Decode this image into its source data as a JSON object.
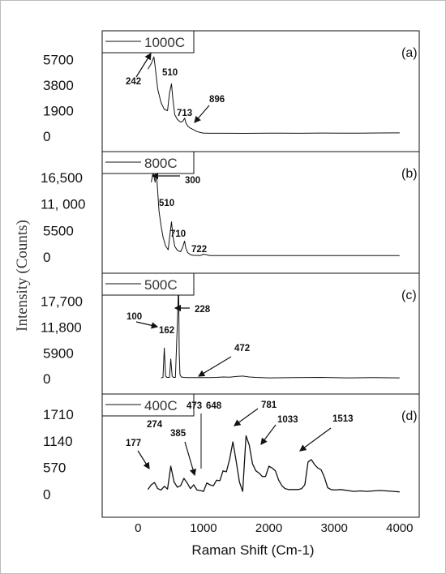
{
  "chart_data": {
    "type": "line",
    "xlabel": "Raman Shift (Cm-1)",
    "ylabel": "Intensity (Counts)",
    "x_ticks": [
      "0",
      "1000",
      "2000",
      "3000",
      "4000"
    ],
    "xlim": [
      -550,
      4300
    ],
    "panels": [
      {
        "panel_label": "(a)",
        "legend": "1000C",
        "y_ticks": [
          "5700",
          "3800",
          "1900",
          "0"
        ],
        "y_tick_values": [
          5700,
          3800,
          1900,
          0
        ],
        "ylim": [
          -300,
          7000
        ],
        "series": [
          {
            "x": [
              150,
              200,
              242,
              260,
              300,
              350,
              400,
              450,
              480,
              510,
              530,
              560,
              600,
              650,
              680,
              713,
              730,
              760,
              800,
              850,
              896,
              950,
              1000,
              1100,
              1200,
              1400,
              1600,
              1800,
              2000,
              2200,
              2500,
              2800,
              3100,
              3400,
              3700,
              4000
            ],
            "y": [
              5000,
              5400,
              5900,
              5200,
              3500,
              2500,
              2000,
              1900,
              3200,
              3900,
              2800,
              1600,
              1250,
              1050,
              1100,
              1350,
              1000,
              750,
              600,
              480,
              350,
              280,
              230,
              220,
              220,
              220,
              215,
              220,
              225,
              230,
              220,
              235,
              225,
              230,
              240,
              250
            ]
          }
        ],
        "annotations": [
          "242",
          "510",
          "713",
          "896"
        ]
      },
      {
        "panel_label": "(b)",
        "legend": "800C",
        "y_ticks": [
          "16,500",
          "11, 000",
          "5500",
          "0"
        ],
        "y_tick_values": [
          16500,
          11000,
          5500,
          0
        ],
        "ylim": [
          -1000,
          19500
        ],
        "series": [
          {
            "x": [
              200,
              230,
              260,
              280,
              300,
              320,
              350,
              380,
              420,
              460,
              490,
              510,
              530,
              560,
              600,
              650,
              680,
              710,
              730,
              760,
              800,
              850,
              900,
              950,
              1000,
              1100,
              1200,
              1400,
              1700,
              2000,
              2500,
              3000,
              3500,
              4000
            ],
            "y": [
              15500,
              17500,
              15500,
              17500,
              13500,
              9500,
              6500,
              4200,
              2300,
              1500,
              5000,
              7300,
              4500,
              2200,
              1400,
              1100,
              2000,
              3300,
              1800,
              900,
              500,
              350,
              350,
              300,
              600,
              300,
              300,
              300,
              300,
              300,
              300,
              300,
              300,
              300
            ]
          }
        ],
        "annotations": [
          "300",
          "510",
          "710",
          "722"
        ]
      },
      {
        "panel_label": "(c)",
        "legend": "500C",
        "y_ticks": [
          "17,700",
          "11,800",
          "5900",
          "0"
        ],
        "y_tick_values": [
          17700,
          11800,
          5900,
          0
        ],
        "ylim": [
          -900,
          21500
        ],
        "series": [
          {
            "x": [
              350,
              380,
              400,
              420,
              440,
              480,
              500,
              520,
              540,
              570,
              600,
              620,
              628,
              640,
              660,
              700,
              750,
              800,
              900,
              1000,
              1100,
              1200,
              1300,
              1400,
              1500,
              1600,
              1700,
              1800,
              2000,
              2400,
              2800,
              3200,
              3600,
              4000
            ],
            "y": [
              200,
              300,
              7000,
              600,
              300,
              300,
              4500,
              600,
              300,
              300,
              12500,
              22000,
              6000,
              1000,
              400,
              300,
              250,
              250,
              250,
              250,
              250,
              300,
              400,
              350,
              500,
              600,
              400,
              300,
              200,
              250,
              300,
              200,
              250,
              200
            ]
          }
        ],
        "annotations": [
          "100",
          "162",
          "228",
          "472"
        ]
      },
      {
        "panel_label": "(d)",
        "legend": "400C",
        "y_ticks": [
          "1710",
          "1140",
          "570",
          "0"
        ],
        "y_tick_values": [
          1710,
          1140,
          570,
          0
        ],
        "ylim": [
          -250,
          1900
        ],
        "series": [
          {
            "x": [
              150,
              200,
              250,
              300,
              350,
              400,
              450,
              500,
              550,
              600,
              650,
              700,
              750,
              800,
              850,
              900,
              950,
              1000,
              1050,
              1100,
              1150,
              1200,
              1250,
              1300,
              1350,
              1400,
              1450,
              1500,
              1550,
              1600,
              1650,
              1700,
              1750,
              1800,
              1850,
              1900,
              1950,
              2000,
              2050,
              2100,
              2150,
              2200,
              2250,
              2300,
              2350,
              2400,
              2450,
              2500,
              2550,
              2600,
              2650,
              2700,
              2750,
              2800,
              2850,
              2900,
              2950,
              3000,
              3100,
              3200,
              3300,
              3400,
              3500,
              3600,
              3700,
              3800,
              3900,
              4000
            ],
            "y": [
              100,
              200,
              250,
              120,
              90,
              170,
              110,
              600,
              260,
              150,
              180,
              340,
              240,
              120,
              200,
              90,
              80,
              60,
              240,
              200,
              180,
              300,
              290,
              500,
              480,
              750,
              1120,
              700,
              260,
              60,
              1250,
              1050,
              650,
              500,
              450,
              380,
              380,
              600,
              560,
              500,
              300,
              180,
              120,
              100,
              100,
              100,
              100,
              120,
              200,
              690,
              740,
              630,
              560,
              520,
              360,
              140,
              100,
              90,
              100,
              80,
              60,
              70,
              60,
              70,
              80,
              70,
              60,
              50
            ]
          }
        ],
        "annotations": [
          "177",
          "274",
          "385",
          "473",
          "648",
          "781",
          "1033",
          "1513"
        ]
      }
    ]
  }
}
